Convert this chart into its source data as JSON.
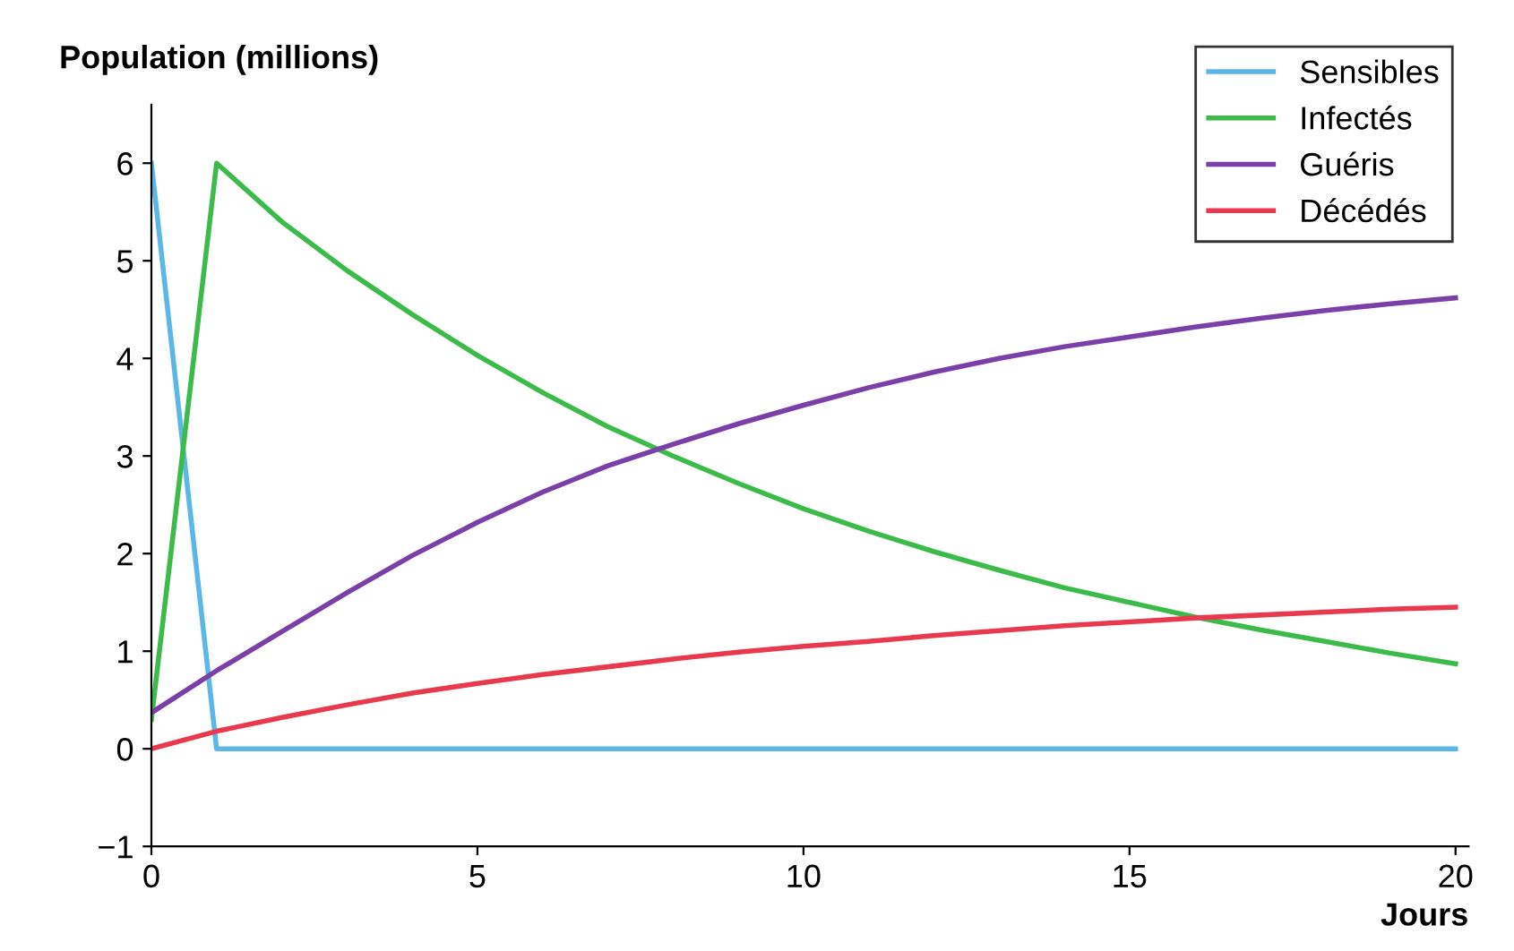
{
  "chart_data": {
    "type": "line",
    "ylabel": "Population (millions)",
    "xlabel": "Jours",
    "xlim": [
      0,
      20.2
    ],
    "ylim": [
      -1,
      6.6
    ],
    "xticks": [
      0,
      5,
      10,
      15,
      20
    ],
    "yticks": [
      -1,
      0,
      1,
      2,
      3,
      4,
      5,
      6
    ],
    "grid": false,
    "legend": "top right",
    "marker": "none",
    "line_style": "solid",
    "series": [
      {
        "name": "Sensibles",
        "color": "#5bb8e6",
        "x": [
          0,
          1,
          20
        ],
        "values": [
          6,
          0,
          0
        ]
      },
      {
        "name": "Infectés",
        "color": "#3dbb4a",
        "x": [
          0,
          1,
          2,
          3,
          4,
          5,
          6,
          7,
          8,
          9,
          10,
          11,
          12,
          13,
          14,
          15,
          16,
          17,
          18,
          19,
          20
        ],
        "values": [
          0.3,
          6,
          5.4,
          4.9,
          4.45,
          4.03,
          3.65,
          3.3,
          3.0,
          2.72,
          2.46,
          2.23,
          2.02,
          1.83,
          1.65,
          1.5,
          1.35,
          1.22,
          1.1,
          0.98,
          0.87
        ]
      },
      {
        "name": "Guéris",
        "color": "#7b3fa8",
        "x": [
          0,
          1,
          2,
          3,
          4,
          5,
          6,
          7,
          8,
          9,
          10,
          11,
          12,
          13,
          14,
          15,
          16,
          17,
          18,
          19,
          20
        ],
        "values": [
          0.37,
          0.8,
          1.2,
          1.6,
          1.98,
          2.32,
          2.63,
          2.9,
          3.12,
          3.33,
          3.52,
          3.7,
          3.86,
          4.0,
          4.12,
          4.22,
          4.32,
          4.41,
          4.49,
          4.56,
          4.62
        ]
      },
      {
        "name": "Décédés",
        "color": "#e8394f",
        "x": [
          0,
          1,
          2,
          3,
          4,
          5,
          6,
          7,
          8,
          9,
          10,
          11,
          12,
          13,
          14,
          15,
          16,
          17,
          18,
          19,
          20
        ],
        "values": [
          0,
          0.18,
          0.32,
          0.45,
          0.57,
          0.67,
          0.76,
          0.84,
          0.92,
          0.99,
          1.05,
          1.1,
          1.16,
          1.21,
          1.26,
          1.3,
          1.34,
          1.37,
          1.4,
          1.43,
          1.45
        ]
      }
    ]
  }
}
